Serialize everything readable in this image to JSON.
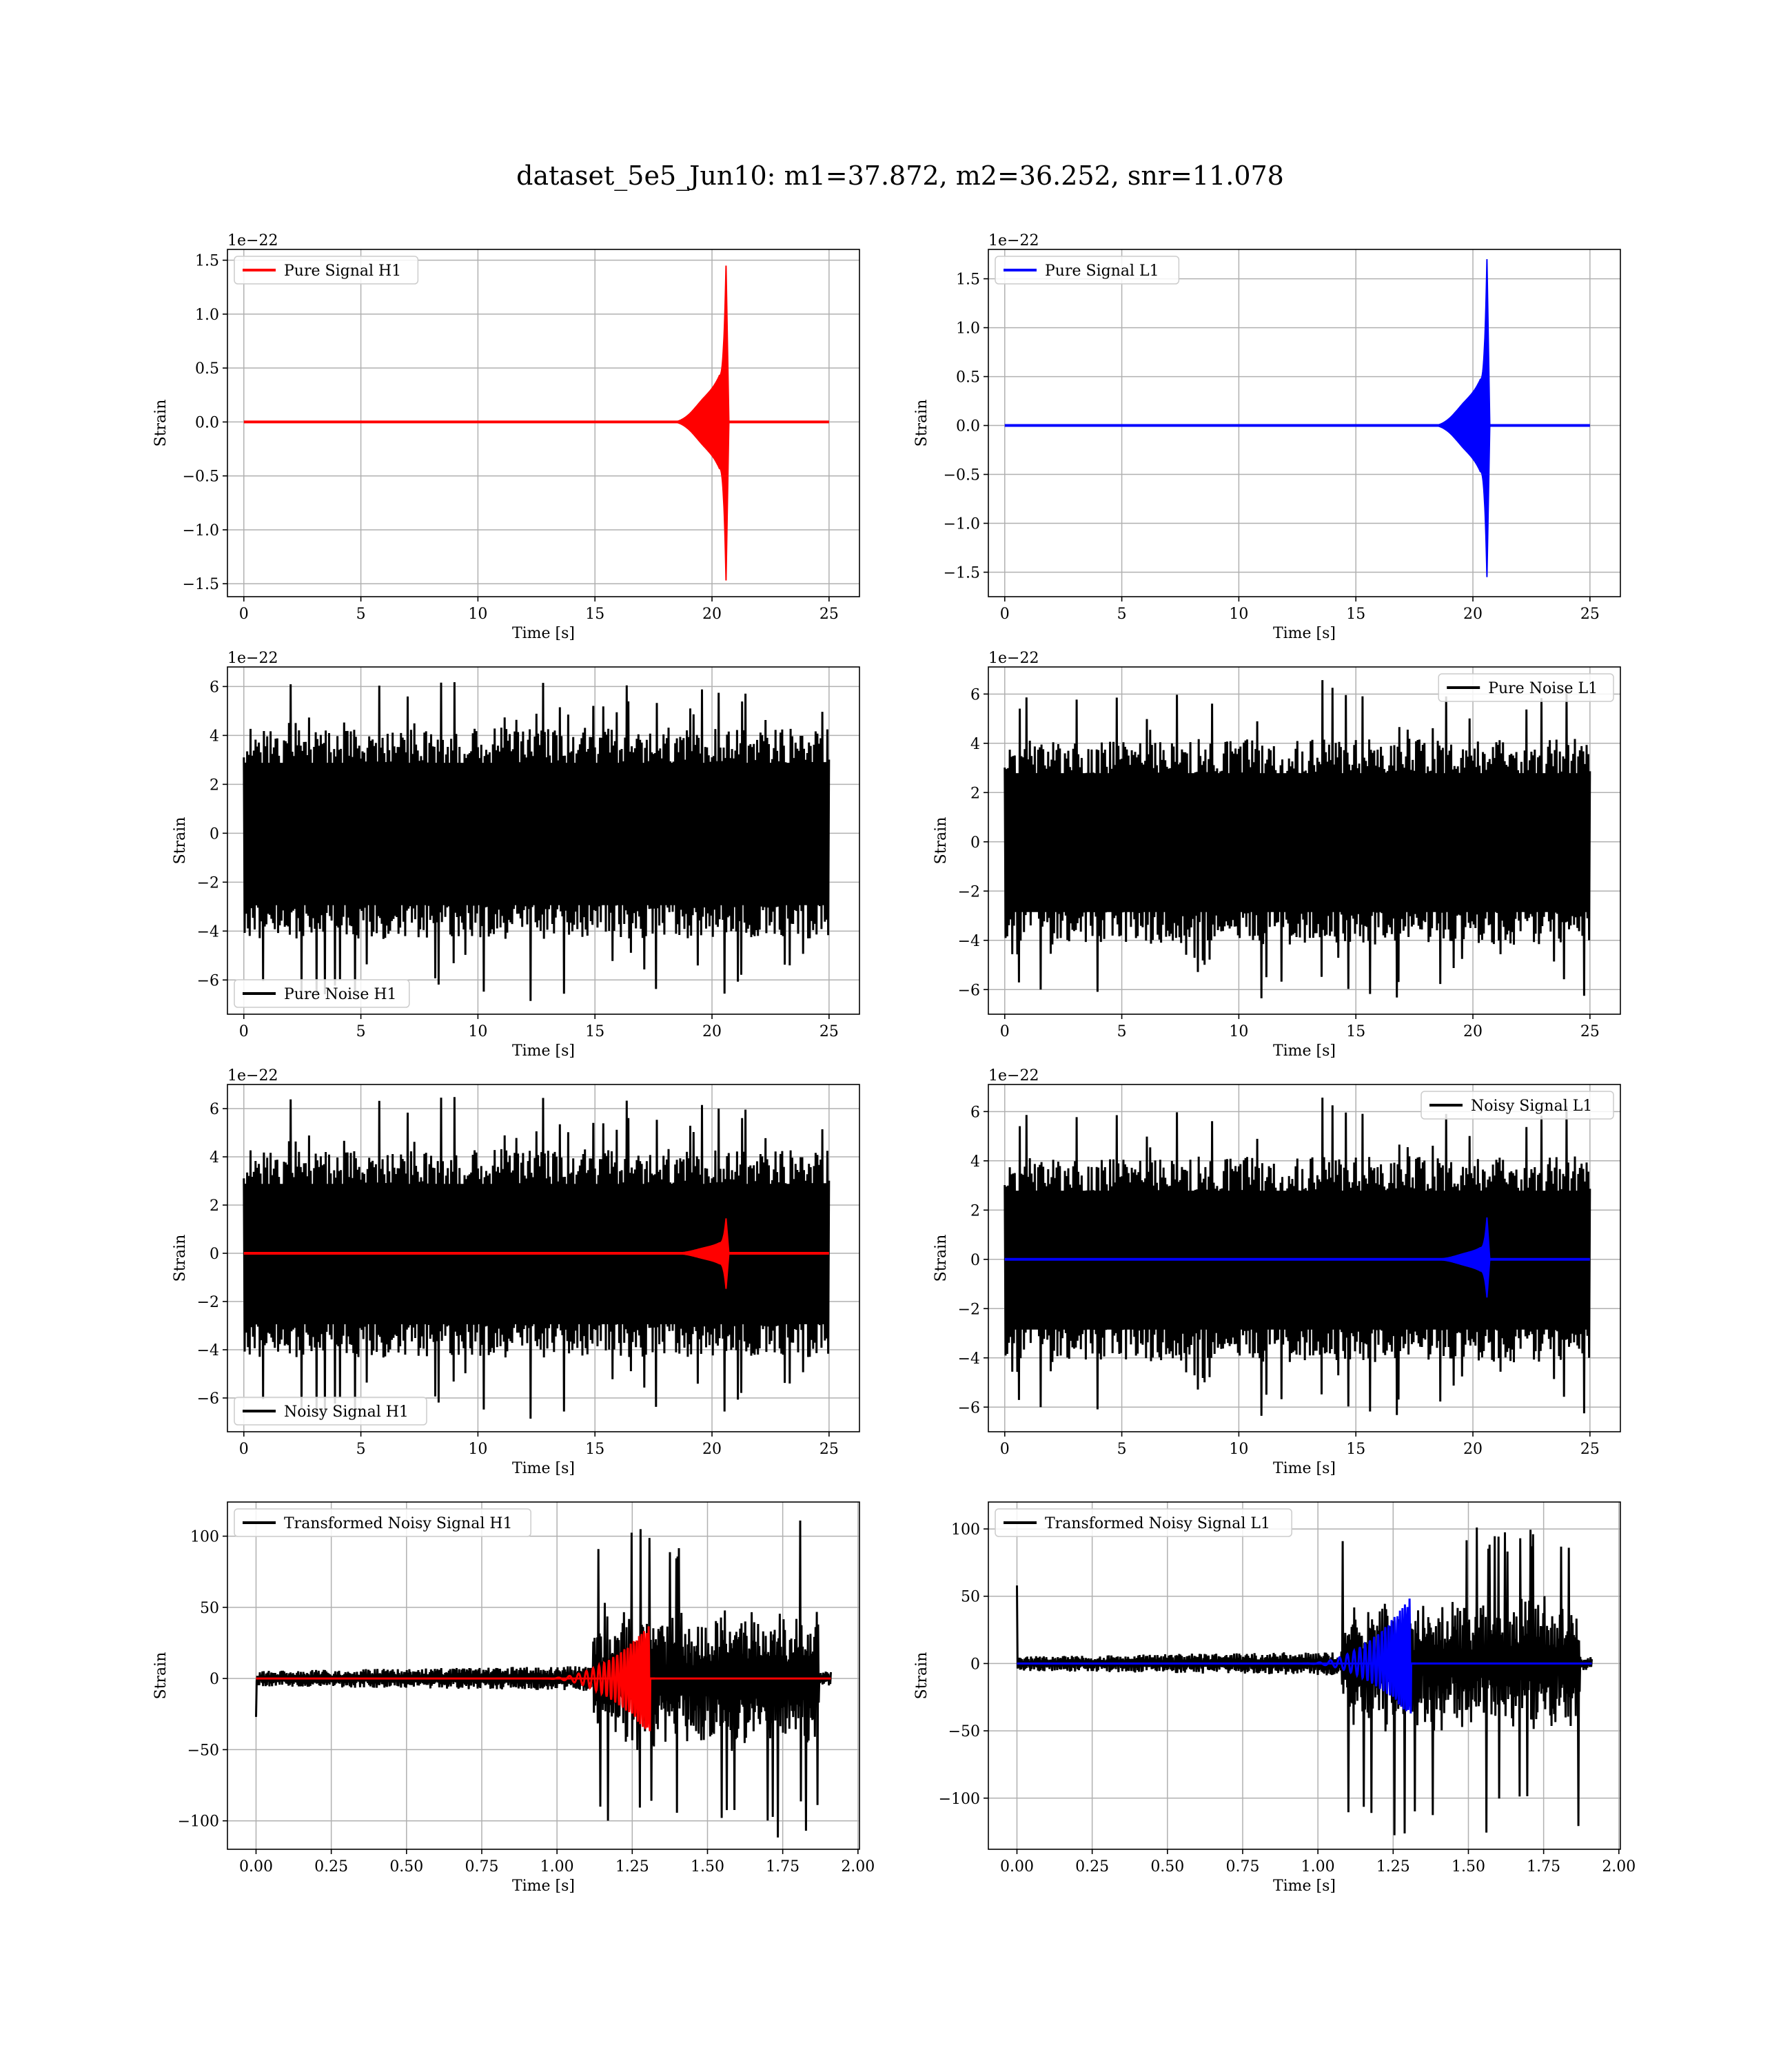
{
  "figure": {
    "suptitle": "dataset_5e5_Jun10: m1=37.872, m2=36.252, snr=11.078"
  },
  "colors": {
    "h1_signal": "#ff0000",
    "l1_signal": "#0000ff",
    "noise": "#000000",
    "grid": "#b0b0b0"
  },
  "chart_data": [
    {
      "id": "pure-signal-h1",
      "type": "line",
      "column": 0,
      "row": 0,
      "xlabel": "Time [s]",
      "ylabel": "Strain",
      "offset_text": "1e−22",
      "xlim": [
        -0.7,
        26.3
      ],
      "ylim": [
        -1.62,
        1.6
      ],
      "xticks": [
        0,
        5,
        10,
        15,
        20,
        25
      ],
      "xtick_labels": [
        "0",
        "5",
        "10",
        "15",
        "20",
        "25"
      ],
      "yticks": [
        -1.5,
        -1.0,
        -0.5,
        0.0,
        0.5,
        1.0,
        1.5
      ],
      "ytick_labels": [
        "−1.5",
        "−1.0",
        "−0.5",
        "0.0",
        "0.5",
        "1.0",
        "1.5"
      ],
      "grid": true,
      "legend": {
        "label": "Pure Signal H1",
        "loc": "upper left",
        "color": "#ff0000"
      },
      "series": [
        {
          "label": "Pure Signal H1",
          "color": "#ff0000",
          "kind": "chirp",
          "params": {
            "t_start": 18.4,
            "t_merge": 20.6,
            "t_end": 25.0,
            "x0": 0,
            "plateau": 0.43,
            "peak": 1.45,
            "trough": 1.47,
            "ringdown": 0.12,
            "lw": 4
          }
        }
      ]
    },
    {
      "id": "pure-signal-l1",
      "type": "line",
      "column": 1,
      "row": 0,
      "xlabel": "Time [s]",
      "ylabel": "Strain",
      "offset_text": "1e−22",
      "xlim": [
        -0.7,
        26.3
      ],
      "ylim": [
        -1.75,
        1.8
      ],
      "xticks": [
        0,
        5,
        10,
        15,
        20,
        25
      ],
      "xtick_labels": [
        "0",
        "5",
        "10",
        "15",
        "20",
        "25"
      ],
      "yticks": [
        -1.5,
        -1.0,
        -0.5,
        0.0,
        0.5,
        1.0,
        1.5
      ],
      "ytick_labels": [
        "−1.5",
        "−1.0",
        "−0.5",
        "0.0",
        "0.5",
        "1.0",
        "1.5"
      ],
      "grid": true,
      "legend": {
        "label": "Pure Signal L1",
        "loc": "upper left",
        "color": "#0000ff"
      },
      "series": [
        {
          "label": "Pure Signal L1",
          "color": "#0000ff",
          "kind": "chirp",
          "params": {
            "t_start": 18.4,
            "t_merge": 20.6,
            "t_end": 25.0,
            "x0": 0,
            "plateau": 0.47,
            "peak": 1.7,
            "trough": 1.55,
            "ringdown": 0.12,
            "lw": 4
          }
        }
      ]
    },
    {
      "id": "pure-noise-h1",
      "type": "line",
      "column": 0,
      "row": 1,
      "xlabel": "Time [s]",
      "ylabel": "Strain",
      "offset_text": "1e−22",
      "xlim": [
        -0.7,
        26.3
      ],
      "ylim": [
        -7.4,
        6.8
      ],
      "xticks": [
        0,
        5,
        10,
        15,
        20,
        25
      ],
      "xtick_labels": [
        "0",
        "5",
        "10",
        "15",
        "20",
        "25"
      ],
      "yticks": [
        -6,
        -4,
        -2,
        0,
        2,
        4,
        6
      ],
      "ytick_labels": [
        "−6",
        "−4",
        "−2",
        "0",
        "2",
        "4",
        "6"
      ],
      "grid": true,
      "legend": {
        "label": "Pure Noise H1",
        "loc": "lower left",
        "color": "#000000"
      },
      "series": [
        {
          "label": "Pure Noise H1",
          "color": "#000000",
          "kind": "noise",
          "params": {
            "t0": 0,
            "t1": 25.0,
            "band": 3.2,
            "peak": 6.2,
            "trough": 6.9,
            "seed": 11,
            "lw": 3
          }
        }
      ]
    },
    {
      "id": "pure-noise-l1",
      "type": "line",
      "column": 1,
      "row": 1,
      "xlabel": "Time [s]",
      "ylabel": "Strain",
      "offset_text": "1e−22",
      "xlim": [
        -0.7,
        26.3
      ],
      "ylim": [
        -7.0,
        7.1
      ],
      "xticks": [
        0,
        5,
        10,
        15,
        20,
        25
      ],
      "xtick_labels": [
        "0",
        "5",
        "10",
        "15",
        "20",
        "25"
      ],
      "yticks": [
        -6,
        -4,
        -2,
        0,
        2,
        4,
        6
      ],
      "ytick_labels": [
        "−6",
        "−4",
        "−2",
        "0",
        "2",
        "4",
        "6"
      ],
      "grid": true,
      "legend": {
        "label": "Pure Noise L1",
        "loc": "upper right",
        "color": "#000000"
      },
      "series": [
        {
          "label": "Pure Noise L1",
          "color": "#000000",
          "kind": "noise",
          "params": {
            "t0": 0,
            "t1": 25.0,
            "band": 3.1,
            "peak": 6.7,
            "trough": 6.4,
            "seed": 23,
            "lw": 3
          }
        }
      ]
    },
    {
      "id": "noisy-signal-h1",
      "type": "line",
      "column": 0,
      "row": 2,
      "xlabel": "Time [s]",
      "ylabel": "Strain",
      "offset_text": "1e−22",
      "xlim": [
        -0.7,
        26.3
      ],
      "ylim": [
        -7.4,
        7.0
      ],
      "xticks": [
        0,
        5,
        10,
        15,
        20,
        25
      ],
      "xtick_labels": [
        "0",
        "5",
        "10",
        "15",
        "20",
        "25"
      ],
      "yticks": [
        -6,
        -4,
        -2,
        0,
        2,
        4,
        6
      ],
      "ytick_labels": [
        "−6",
        "−4",
        "−2",
        "0",
        "2",
        "4",
        "6"
      ],
      "grid": true,
      "legend": {
        "label": "Noisy Signal H1",
        "loc": "lower left",
        "color": "#000000"
      },
      "series": [
        {
          "label": "Noisy Signal H1",
          "color": "#000000",
          "kind": "noise",
          "params": {
            "t0": 0,
            "t1": 25.0,
            "band": 3.2,
            "peak": 6.5,
            "trough": 6.9,
            "seed": 11,
            "lw": 3
          }
        },
        {
          "label": "Pure Signal H1",
          "color": "#ff0000",
          "kind": "chirp",
          "params": {
            "t_start": 18.4,
            "t_merge": 20.6,
            "t_end": 25.0,
            "x0": 0,
            "plateau": 0.43,
            "peak": 1.45,
            "trough": 1.47,
            "ringdown": 0.12,
            "lw": 4
          }
        }
      ]
    },
    {
      "id": "noisy-signal-l1",
      "type": "line",
      "column": 1,
      "row": 2,
      "xlabel": "Time [s]",
      "ylabel": "Strain",
      "offset_text": "1e−22",
      "xlim": [
        -0.7,
        26.3
      ],
      "ylim": [
        -7.0,
        7.1
      ],
      "xticks": [
        0,
        5,
        10,
        15,
        20,
        25
      ],
      "xtick_labels": [
        "0",
        "5",
        "10",
        "15",
        "20",
        "25"
      ],
      "yticks": [
        -6,
        -4,
        -2,
        0,
        2,
        4,
        6
      ],
      "ytick_labels": [
        "−6",
        "−4",
        "−2",
        "0",
        "2",
        "4",
        "6"
      ],
      "grid": true,
      "legend": {
        "label": "Noisy Signal L1",
        "loc": "upper right",
        "color": "#000000"
      },
      "series": [
        {
          "label": "Noisy Signal L1",
          "color": "#000000",
          "kind": "noise",
          "params": {
            "t0": 0,
            "t1": 25.0,
            "band": 3.1,
            "peak": 6.7,
            "trough": 6.4,
            "seed": 23,
            "lw": 3
          }
        },
        {
          "label": "Pure Signal L1",
          "color": "#0000ff",
          "kind": "chirp",
          "params": {
            "t_start": 18.4,
            "t_merge": 20.6,
            "t_end": 25.0,
            "x0": 0,
            "plateau": 0.47,
            "peak": 1.7,
            "trough": 1.55,
            "ringdown": 0.12,
            "lw": 4
          }
        }
      ]
    },
    {
      "id": "transformed-noisy-signal-h1",
      "type": "line",
      "column": 0,
      "row": 3,
      "xlabel": "Time [s]",
      "ylabel": "Strain",
      "offset_text": "",
      "xlim": [
        -0.095,
        2.005
      ],
      "ylim": [
        -120,
        124
      ],
      "xticks": [
        0.0,
        0.25,
        0.5,
        0.75,
        1.0,
        1.25,
        1.5,
        1.75,
        2.0
      ],
      "xtick_labels": [
        "0.00",
        "0.25",
        "0.50",
        "0.75",
        "1.00",
        "1.25",
        "1.50",
        "1.75",
        "2.00"
      ],
      "yticks": [
        -100,
        -50,
        0,
        50,
        100
      ],
      "ytick_labels": [
        "−100",
        "−50",
        "0",
        "50",
        "100"
      ],
      "grid": true,
      "legend": {
        "label": "Transformed Noisy Signal H1",
        "loc": "upper left",
        "color": "#000000"
      },
      "series": [
        {
          "label": "Transformed Noisy Signal H1",
          "color": "#000000",
          "kind": "whitened",
          "params": {
            "t0": 0,
            "t1": 1.91,
            "t_ramp": 1.12,
            "t_cut": 1.87,
            "pre": 9,
            "post": 55,
            "peak": 112,
            "trough": 112,
            "seed": 31,
            "spike0": -27,
            "lw": 3
          }
        },
        {
          "label": "Transformed Pure Signal H1",
          "color": "#ff0000",
          "kind": "wchirp",
          "params": {
            "t0": 0,
            "t1": 1.91,
            "t_start": 0.95,
            "t_merge": 1.31,
            "peak": 38,
            "trough": 40,
            "lw": 3
          }
        }
      ]
    },
    {
      "id": "transformed-noisy-signal-l1",
      "type": "line",
      "column": 1,
      "row": 3,
      "xlabel": "Time [s]",
      "ylabel": "Strain",
      "offset_text": "",
      "xlim": [
        -0.095,
        2.005
      ],
      "ylim": [
        -138,
        120
      ],
      "xticks": [
        0.0,
        0.25,
        0.5,
        0.75,
        1.0,
        1.25,
        1.5,
        1.75,
        2.0
      ],
      "xtick_labels": [
        "0.00",
        "0.25",
        "0.50",
        "0.75",
        "1.00",
        "1.25",
        "1.50",
        "1.75",
        "2.00"
      ],
      "yticks": [
        -100,
        -50,
        0,
        50,
        100
      ],
      "ytick_labels": [
        "−100",
        "−50",
        "0",
        "50",
        "100"
      ],
      "grid": true,
      "legend": {
        "label": "Transformed Noisy Signal L1",
        "loc": "upper left",
        "color": "#000000"
      },
      "series": [
        {
          "label": "Transformed Noisy Signal L1",
          "color": "#000000",
          "kind": "whitened",
          "params": {
            "t0": 0,
            "t1": 1.91,
            "t_ramp": 1.08,
            "t_cut": 1.87,
            "pre": 9,
            "post": 55,
            "peak": 110,
            "trough": 128,
            "seed": 47,
            "spike0": 58,
            "lw": 3
          }
        },
        {
          "label": "Transformed Pure Signal L1",
          "color": "#0000ff",
          "kind": "wchirp",
          "params": {
            "t0": 0,
            "t1": 1.91,
            "t_start": 0.95,
            "t_merge": 1.31,
            "peak": 50,
            "trough": 40,
            "lw": 3
          }
        }
      ]
    }
  ]
}
